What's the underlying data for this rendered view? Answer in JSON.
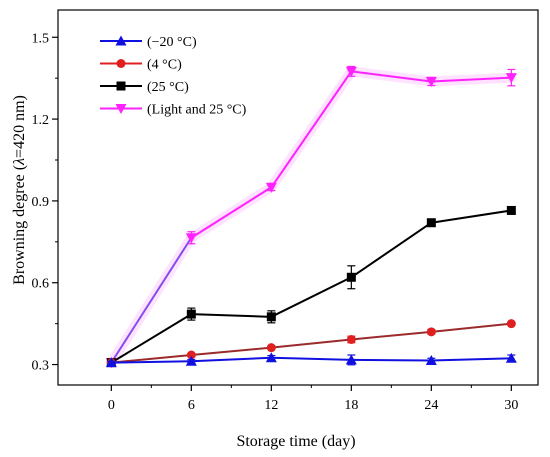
{
  "chart_data": {
    "type": "line",
    "xlabel": "Storage time (day)",
    "ylabel_prefix": "Browning degree (",
    "ylabel_lambda": "λ",
    "ylabel_suffix": "=420 nm)",
    "xlim": [
      -4,
      32
    ],
    "ylim": [
      0.225,
      1.6
    ],
    "x_ticks": [
      0,
      6,
      12,
      18,
      24,
      30
    ],
    "x_tick_labels": [
      "0",
      "6",
      "12",
      "18",
      "24",
      "30"
    ],
    "y_ticks": [
      0.3,
      0.6,
      0.9,
      1.2,
      1.5
    ],
    "y_tick_labels": [
      "0.3",
      "0.6",
      "0.9",
      "1.2",
      "1.5"
    ],
    "x": [
      0,
      6,
      12,
      18,
      24,
      30
    ],
    "legend_position": "top-left",
    "grid": false,
    "series": [
      {
        "name": "(−20 °C)",
        "color": "#1010e0",
        "marker": "triangle-up",
        "values": [
          0.307,
          0.312,
          0.325,
          0.317,
          0.315,
          0.323
        ],
        "errors": [
          0.005,
          0.006,
          0.008,
          0.018,
          0.008,
          0.012
        ]
      },
      {
        "name": "(4 °C)",
        "color": "#e02020",
        "line_color": "#9b2b2b",
        "marker": "circle",
        "values": [
          0.307,
          0.335,
          0.362,
          0.392,
          0.42,
          0.45
        ],
        "errors": [
          0.004,
          0.006,
          0.006,
          0.012,
          0.008,
          0.006
        ]
      },
      {
        "name": "(25 °C)",
        "color": "#000000",
        "marker": "square",
        "values": [
          0.307,
          0.485,
          0.475,
          0.62,
          0.82,
          0.865
        ],
        "errors": [
          0.005,
          0.022,
          0.022,
          0.042,
          0.01,
          0.01
        ]
      },
      {
        "name": "(Light and 25 °C)",
        "color": "#ff22ff",
        "first_segment_color": "#8050e8",
        "marker": "triangle-down",
        "values": [
          0.307,
          0.765,
          0.95,
          1.375,
          1.338,
          1.352
        ],
        "errors": [
          0.008,
          0.022,
          0.012,
          0.018,
          0.015,
          0.03
        ]
      }
    ]
  }
}
